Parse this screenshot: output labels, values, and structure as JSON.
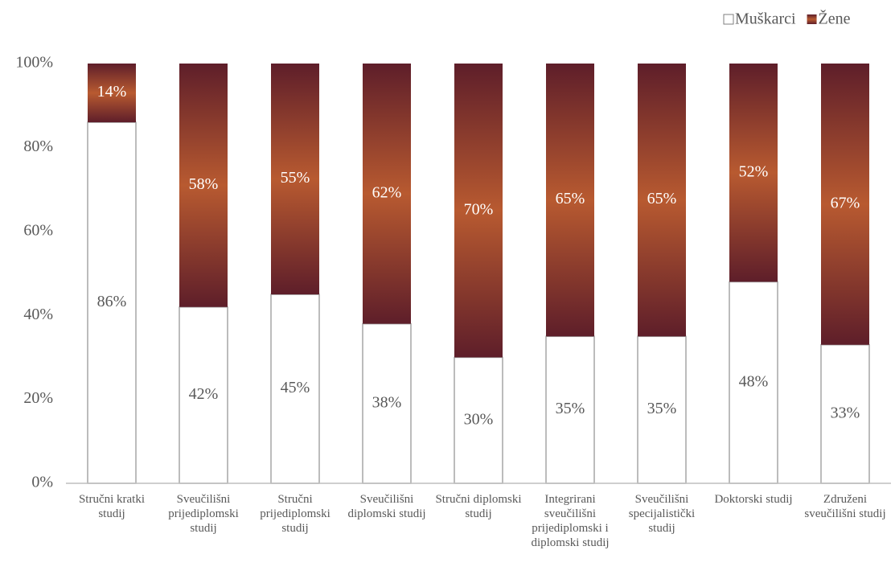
{
  "chart_data": {
    "type": "stacked_bar",
    "categories": [
      "Stručni kratki studij",
      "Sveučilišni prijediplomski studij",
      "Stručni prijediplomski studij",
      "Sveučilišni diplomski studij",
      "Stručni diplomski studij",
      "Integrirani sveučilišni prijediplomski i diplomski studij",
      "Sveučilišni specijalistički studij",
      "Doktorski studij",
      "Združeni sveučilišni studij"
    ],
    "series": [
      {
        "name": "Muškarci",
        "color": "#ffffff",
        "values": [
          86,
          42,
          45,
          38,
          30,
          35,
          35,
          48,
          33
        ],
        "value_labels": [
          "86%",
          "42%",
          "45%",
          "38%",
          "30%",
          "35%",
          "35%",
          "48%",
          "33%"
        ]
      },
      {
        "name": "Žene",
        "color": "#b85a30",
        "values": [
          14,
          58,
          55,
          62,
          70,
          65,
          65,
          52,
          67
        ],
        "value_labels": [
          "14%",
          "58%",
          "55%",
          "62%",
          "70%",
          "65%",
          "65%",
          "52%",
          "67%"
        ]
      }
    ],
    "ylim": [
      0,
      100
    ],
    "yticks": [
      {
        "value": 0,
        "label": "0%"
      },
      {
        "value": 20,
        "label": "20%"
      },
      {
        "value": 40,
        "label": "40%"
      },
      {
        "value": 60,
        "label": "60%"
      },
      {
        "value": 80,
        "label": "80%"
      },
      {
        "value": 100,
        "label": "100%"
      }
    ],
    "legend": "top-right"
  }
}
